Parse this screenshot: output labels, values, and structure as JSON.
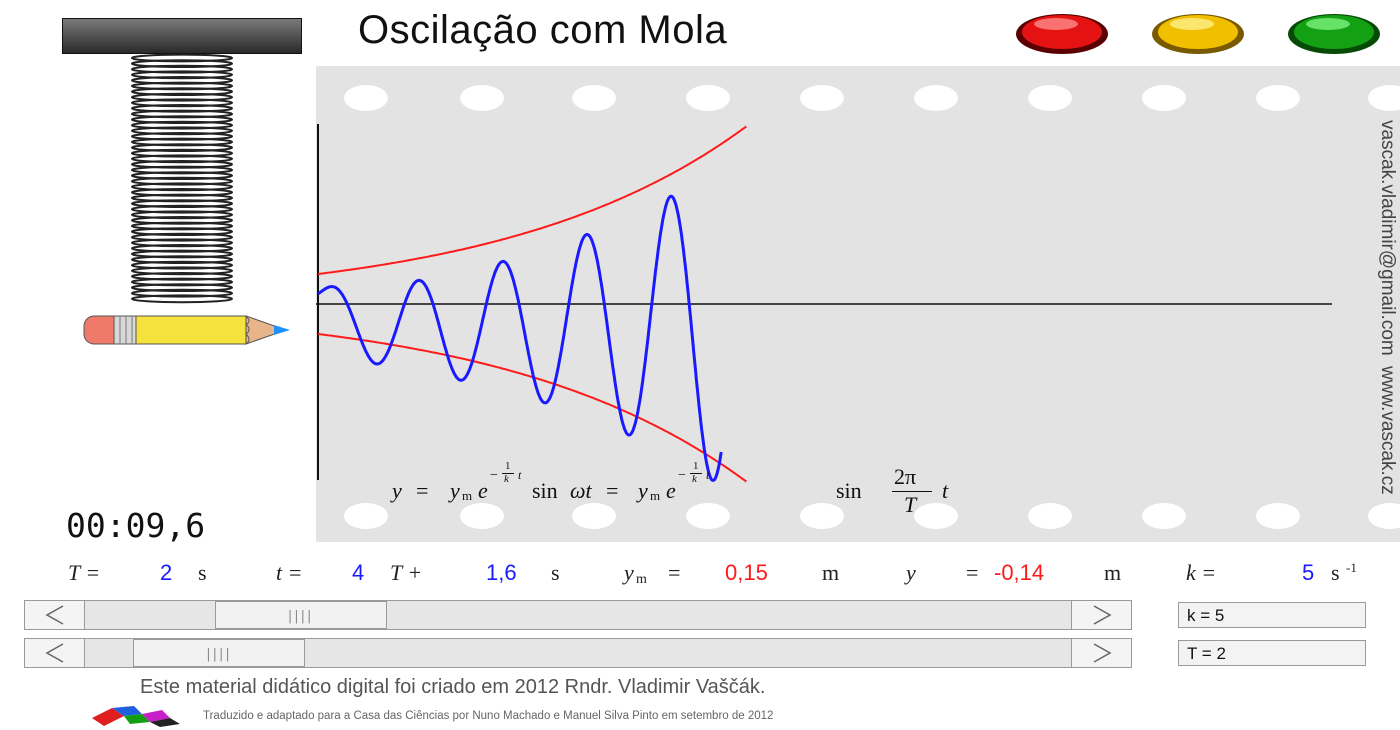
{
  "header": {
    "title": "Oscilação com Mola",
    "buttons": [
      {
        "name": "red-lamp-button",
        "color": "#e41212"
      },
      {
        "name": "yellow-lamp-button",
        "color": "#f0c000"
      },
      {
        "name": "green-lamp-button",
        "color": "#13a013"
      }
    ]
  },
  "timer": "00:09,6",
  "credits": {
    "vertical_email": "vascak.vladimir@gmail.com",
    "vertical_site": "www.vascak.cz",
    "line1": "Este material didático digital foi criado em 2012 Rndr. Vladimir Vaščák.",
    "line2": "Traduzido e adaptado para a Casa das Ciências por Nuno Machado e Manuel Silva Pinto em setembro de 2012"
  },
  "formula": {
    "y": "y",
    "eq": "=",
    "ym": "y",
    "m": "m",
    "e": "e",
    "minus": "−",
    "one": "1",
    "k": "k",
    "t": "t",
    "sin": "sin",
    "omega_t": "ωt",
    "two_pi": "2π",
    "T": "T"
  },
  "params": {
    "T_label": "T =",
    "T_value": "2",
    "T_unit": "s",
    "t_label": "t =",
    "t_periods": "4",
    "t_mid": "T +",
    "t_value": "1,6",
    "t_unit": "s",
    "ym_label": "y",
    "ym_sub": "m",
    "ym_eq": "=",
    "ym_value": "0,15",
    "ym_unit": "m",
    "y_label": "y",
    "y_eq": "=",
    "y_value": "-0,14",
    "y_unit": "m",
    "k_label": "k =",
    "k_value": "5",
    "k_unit": "s",
    "k_exp": "-1"
  },
  "controls": {
    "k_slider": {
      "value": 5,
      "fraction": 0.1
    },
    "T_slider": {
      "value": 2,
      "fraction": 0.0
    },
    "k_field": "k = 5",
    "T_field": "T = 2",
    "left_arrow": "<",
    "right_arrow": ">",
    "grip": "||||"
  },
  "colors": {
    "wave": "#1a1aff",
    "envelope": "#ff1a1a",
    "paper": "#e3e3e3"
  }
}
